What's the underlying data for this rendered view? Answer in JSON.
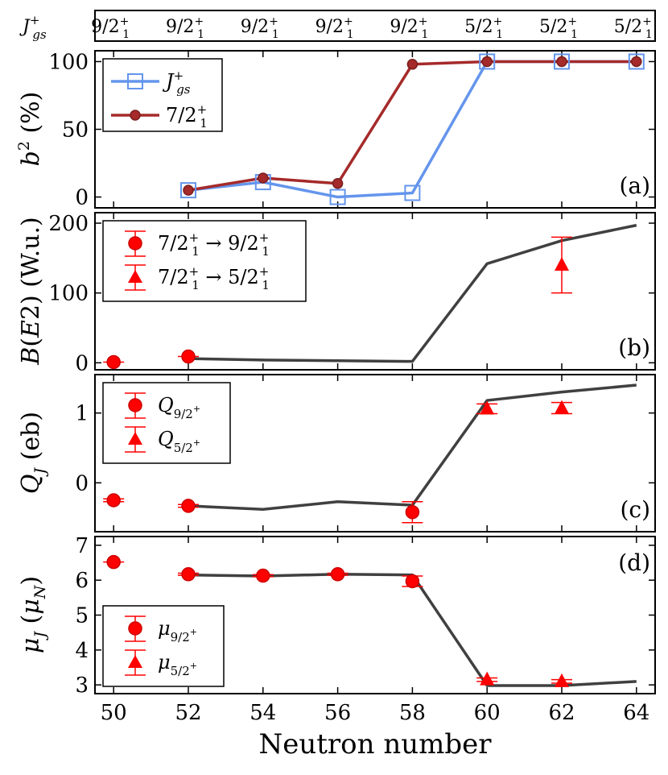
{
  "chart_data": {
    "type": "multi-panel line/errorbar",
    "xlabel": "Neutron number",
    "x_ticks": [
      50,
      52,
      54,
      56,
      58,
      60,
      62,
      64
    ],
    "xlim": [
      49.5,
      64.5
    ],
    "top_strip": {
      "label": "J⁺gs",
      "x": [
        50,
        52,
        54,
        56,
        58,
        60,
        62,
        64
      ],
      "values": [
        "9/2⁺₁",
        "9/2⁺₁",
        "9/2⁺₁",
        "9/2⁺₁",
        "9/2⁺₁",
        "5/2⁺₁",
        "5/2⁺₁",
        "5/2⁺₁"
      ]
    },
    "panels": [
      {
        "id": "a",
        "tag": "(a)",
        "ylabel": "b² (%)",
        "ylim": [
          -8,
          108
        ],
        "yticks": [
          0,
          50,
          100
        ],
        "legend": [
          "J⁺gs",
          "7/2⁺₁"
        ],
        "series": [
          {
            "name": "J⁺gs",
            "color": "#6495ED",
            "marker": "open-square",
            "x": [
              52,
              54,
              56,
              58,
              60,
              62,
              64
            ],
            "y": [
              5,
              11,
              0,
              3,
              100,
              100,
              100
            ]
          },
          {
            "name": "7/2⁺₁",
            "color": "#A52A2A",
            "marker": "filled-circle",
            "x": [
              52,
              54,
              56,
              58,
              60,
              62,
              64
            ],
            "y": [
              5,
              14,
              10,
              98,
              100,
              100,
              100
            ]
          }
        ]
      },
      {
        "id": "b",
        "tag": "(b)",
        "ylabel": "B(E2) (W.u.)",
        "ylim": [
          -10,
          215
        ],
        "yticks": [
          0,
          100,
          200
        ],
        "legend": [
          "7/2⁺₁ → 9/2⁺₁",
          "7/2⁺₁ → 5/2⁺₁"
        ],
        "theory": {
          "x": [
            52,
            54,
            56,
            58,
            60,
            62,
            64
          ],
          "y": [
            6,
            4,
            3,
            2,
            142,
            175,
            197
          ]
        },
        "experiment": [
          {
            "name": "7/2⁺₁ → 9/2⁺₁",
            "marker": "circle",
            "x": [
              50,
              52
            ],
            "y": [
              1,
              9
            ],
            "err": [
              1,
              1
            ]
          },
          {
            "name": "7/2⁺₁ → 5/2⁺₁",
            "marker": "triangle",
            "x": [
              62
            ],
            "y": [
              140
            ],
            "err": [
              40
            ]
          }
        ]
      },
      {
        "id": "c",
        "tag": "(c)",
        "ylabel": "QJ (eb)",
        "ylim": [
          -0.7,
          1.55
        ],
        "yticks": [
          0,
          1
        ],
        "legend": [
          "Q9/2⁺",
          "Q5/2⁺"
        ],
        "theory": {
          "x": [
            52,
            54,
            56,
            58,
            60,
            62,
            64
          ],
          "y": [
            -0.33,
            -0.38,
            -0.27,
            -0.32,
            1.18,
            1.3,
            1.4
          ]
        },
        "experiment": [
          {
            "name": "Q9/2⁺",
            "marker": "circle",
            "x": [
              50,
              52,
              58
            ],
            "y": [
              -0.25,
              -0.33,
              -0.42
            ],
            "err": [
              0.02,
              0.02,
              0.15
            ]
          },
          {
            "name": "Q5/2⁺",
            "marker": "triangle",
            "x": [
              60,
              62
            ],
            "y": [
              1.06,
              1.07
            ],
            "err": [
              0.07,
              0.08
            ]
          }
        ]
      },
      {
        "id": "d",
        "tag": "(d)",
        "ylabel": "μJ (μN)",
        "ylim": [
          2.75,
          7.25
        ],
        "yticks": [
          3,
          4,
          5,
          6,
          7
        ],
        "legend": [
          "μ9/2⁺",
          "μ5/2⁺"
        ],
        "theory": {
          "x": [
            52,
            54,
            56,
            58,
            60,
            62,
            64
          ],
          "y": [
            6.15,
            6.12,
            6.17,
            6.15,
            2.98,
            2.98,
            3.1
          ]
        },
        "experiment": [
          {
            "name": "μ9/2⁺",
            "marker": "circle",
            "x": [
              50,
              52,
              54,
              56,
              58
            ],
            "y": [
              6.52,
              6.17,
              6.13,
              6.17,
              5.97
            ],
            "err": [
              0.02,
              0.03,
              0.03,
              0.03,
              0.15
            ]
          },
          {
            "name": "μ5/2⁺",
            "marker": "triangle",
            "x": [
              60,
              62
            ],
            "y": [
              3.15,
              3.1
            ],
            "err": [
              0.05,
              0.05
            ]
          }
        ]
      }
    ]
  }
}
